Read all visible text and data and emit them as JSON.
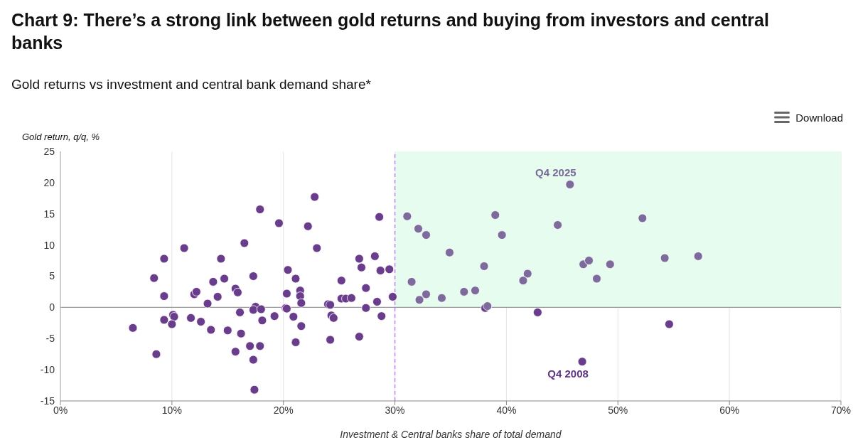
{
  "chart_data": {
    "type": "scatter",
    "title": "Chart 9: There’s a strong link between gold returns and buying from investors and central banks",
    "subtitle": "Gold returns vs investment and central bank demand share*",
    "xlabel": "Investment & Central banks share of total demand",
    "ylabel": "Gold return, q/q, %",
    "series": [
      {
        "color": "#6a3d8c",
        "x": [
          6.5,
          8.6,
          8.4,
          9.3,
          9.3,
          9.3,
          10.1,
          10.2,
          10.0,
          11.1,
          11.7,
          12.0,
          12.2,
          12.6,
          13.2,
          13.5,
          13.7,
          14.1,
          14.4,
          14.7,
          15.0,
          15.7,
          15.9,
          15.7,
          16.1,
          16.2,
          16.5,
          17.0,
          17.3,
          17.3,
          17.5,
          17.3,
          17.4,
          17.9,
          17.9,
          18.0,
          18.1,
          19.2,
          19.6,
          20.2,
          20.3,
          20.4,
          20.3,
          20.9,
          21.1,
          21.1,
          21.5,
          21.5,
          21.6,
          21.6,
          22.2,
          22.8,
          23.0,
          24.0,
          24.2,
          24.2,
          24.3,
          24.5,
          25.2,
          25.2,
          25.6,
          26.1,
          26.8,
          26.8,
          27.0,
          27.4,
          27.4,
          28.2,
          28.4,
          28.6,
          28.7,
          28.8,
          29.5,
          29.8,
          38.1,
          42.8,
          46.8,
          54.6
        ],
        "values": [
          -3.3,
          -7.5,
          4.7,
          7.8,
          1.8,
          -2.0,
          -1.2,
          -1.5,
          -2.7,
          9.5,
          -1.7,
          2.1,
          2.5,
          -2.3,
          0.6,
          -3.6,
          4.1,
          1.7,
          7.8,
          4.6,
          -3.7,
          3.0,
          2.4,
          -7.1,
          -0.8,
          -4.2,
          10.3,
          -6.2,
          5.0,
          -8.4,
          0.1,
          -0.4,
          -13.2,
          15.7,
          -6.2,
          -0.3,
          -2.1,
          -1.4,
          13.5,
          -0.1,
          -0.2,
          6.0,
          2.2,
          -1.5,
          4.6,
          -5.6,
          2.7,
          1.8,
          0.7,
          -3.0,
          13.0,
          17.7,
          9.5,
          0.5,
          0.4,
          -5.2,
          -1.3,
          -1.7,
          4.3,
          1.4,
          1.4,
          1.5,
          7.8,
          -4.7,
          6.4,
          3.1,
          -0.1,
          8.2,
          0.9,
          14.5,
          5.9,
          -1.4,
          6.1,
          1.7,
          -0.1,
          -0.8,
          -8.7,
          -2.7
        ]
      },
      {
        "color": "#7d6b9c",
        "x": [
          31.1,
          32.1,
          32.8,
          39.0,
          39.6,
          34.9,
          44.6,
          38.0,
          41.9,
          41.5,
          31.5,
          32.8,
          32.2,
          34.2,
          36.2,
          37.2,
          38.3,
          45.7,
          52.2,
          46.9,
          47.4,
          49.3,
          48.1,
          54.2,
          57.2
        ],
        "values": [
          14.6,
          12.6,
          11.6,
          14.8,
          11.6,
          8.8,
          13.2,
          6.6,
          5.4,
          4.3,
          4.1,
          2.1,
          1.2,
          1.5,
          2.5,
          2.7,
          0.2,
          19.7,
          14.3,
          6.9,
          7.5,
          6.9,
          4.6,
          7.9,
          8.2
        ]
      }
    ],
    "xlim": [
      0,
      70
    ],
    "xticks": [
      {
        "value": 0,
        "label": "0%"
      },
      {
        "value": 10,
        "label": "10%"
      },
      {
        "value": 20,
        "label": "20%"
      },
      {
        "value": 30,
        "label": "30%"
      },
      {
        "value": 40,
        "label": "40%"
      },
      {
        "value": 50,
        "label": "50%"
      },
      {
        "value": 60,
        "label": "60%"
      },
      {
        "value": 70,
        "label": "70%"
      }
    ],
    "ylim": [
      -15,
      25
    ],
    "yticks": [
      -15,
      -10,
      -5,
      0,
      5,
      10,
      15,
      20,
      25
    ],
    "grid": "x",
    "marker": "circle",
    "bands": [
      {
        "axis": "x",
        "from": 30,
        "to": 70,
        "color": "#e6fcee"
      }
    ],
    "ref_lines": [
      {
        "axis": "x",
        "value": 30,
        "color": "#c77dff",
        "line_style": "dashed"
      },
      {
        "axis": "y",
        "value": 0,
        "color": "#999999",
        "line_style": "solid"
      }
    ],
    "annotations": [
      {
        "text": "Q4 2025",
        "x": 45.7,
        "y": 19.7
      },
      {
        "text": "Q4 2008",
        "x": 46.8,
        "y": -8.7
      },
      "Download"
    ]
  }
}
